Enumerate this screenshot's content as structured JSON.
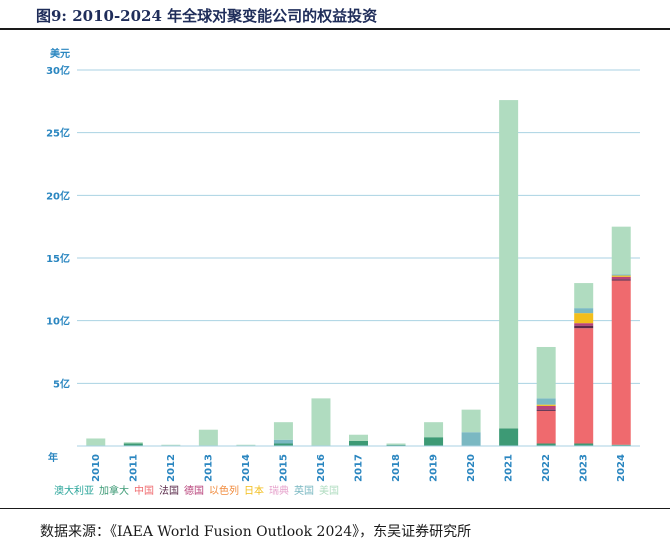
{
  "title": "图9:  2010-2024 年全球对聚变能公司的权益投资",
  "source": "数据来源：《IAEA World Fusion Outlook 2024》，东吴证券研究所",
  "colors": {
    "澳大利亚": "#2aa59a",
    "加拿大": "#3d9a75",
    "中国": "#ef6a6e",
    "法国": "#5a2a4a",
    "德国": "#b8427a",
    "以色列": "#f08a3c",
    "日本": "#f2be1c",
    "瑞典": "#e6a3cc",
    "英国": "#7ab8c2",
    "美国": "#b0dcc0"
  },
  "chart_data": {
    "type": "bar",
    "stacked": true,
    "ylabel": "美元",
    "xlabel": "年",
    "ylim": [
      0,
      30
    ],
    "yticks": [
      0,
      5,
      10,
      15,
      20,
      25,
      30
    ],
    "ytick_labels": [
      "",
      "5亿",
      "10亿",
      "15亿",
      "20亿",
      "25亿",
      "30亿"
    ],
    "grid": true,
    "legend_position": "bottom-left",
    "categories": [
      "2010",
      "2011",
      "2012",
      "2013",
      "2014",
      "2015",
      "2016",
      "2017",
      "2018",
      "2019",
      "2020",
      "2021",
      "2022",
      "2023",
      "2024"
    ],
    "series": [
      {
        "name": "澳大利亚",
        "values": [
          0,
          0,
          0,
          0,
          0,
          0,
          0,
          0,
          0,
          0,
          0,
          0,
          0,
          0,
          0
        ]
      },
      {
        "name": "加拿大",
        "values": [
          0,
          0.2,
          0,
          0,
          0,
          0.2,
          0,
          0.4,
          0.1,
          0.7,
          0,
          1.4,
          0.2,
          0.2,
          0.1
        ]
      },
      {
        "name": "中国",
        "values": [
          0,
          0,
          0,
          0,
          0,
          0,
          0,
          0,
          0,
          0,
          0,
          0,
          2.6,
          9.2,
          13.1
        ]
      },
      {
        "name": "法国",
        "values": [
          0,
          0,
          0,
          0,
          0,
          0,
          0,
          0,
          0,
          0,
          0,
          0,
          0.1,
          0.2,
          0.1
        ]
      },
      {
        "name": "德国",
        "values": [
          0,
          0,
          0,
          0,
          0,
          0,
          0,
          0,
          0,
          0,
          0,
          0,
          0.3,
          0.2,
          0.2
        ]
      },
      {
        "name": "以色列",
        "values": [
          0,
          0,
          0,
          0,
          0,
          0,
          0,
          0,
          0,
          0,
          0,
          0,
          0,
          0,
          0
        ]
      },
      {
        "name": "日本",
        "values": [
          0,
          0,
          0,
          0,
          0,
          0,
          0,
          0,
          0,
          0,
          0,
          0,
          0.1,
          0.8,
          0.1
        ]
      },
      {
        "name": "瑞典",
        "values": [
          0,
          0,
          0,
          0,
          0,
          0,
          0,
          0,
          0,
          0,
          0,
          0,
          0,
          0,
          0
        ]
      },
      {
        "name": "英国",
        "values": [
          0,
          0,
          0,
          0,
          0,
          0.3,
          0,
          0,
          0,
          0,
          1.1,
          0,
          0.5,
          0.4,
          0.1
        ]
      },
      {
        "name": "美国",
        "values": [
          0.6,
          0.1,
          0.1,
          1.3,
          0.1,
          1.4,
          3.8,
          0.5,
          0.1,
          1.2,
          1.8,
          26.2,
          4.1,
          2.0,
          3.8
        ]
      }
    ]
  }
}
